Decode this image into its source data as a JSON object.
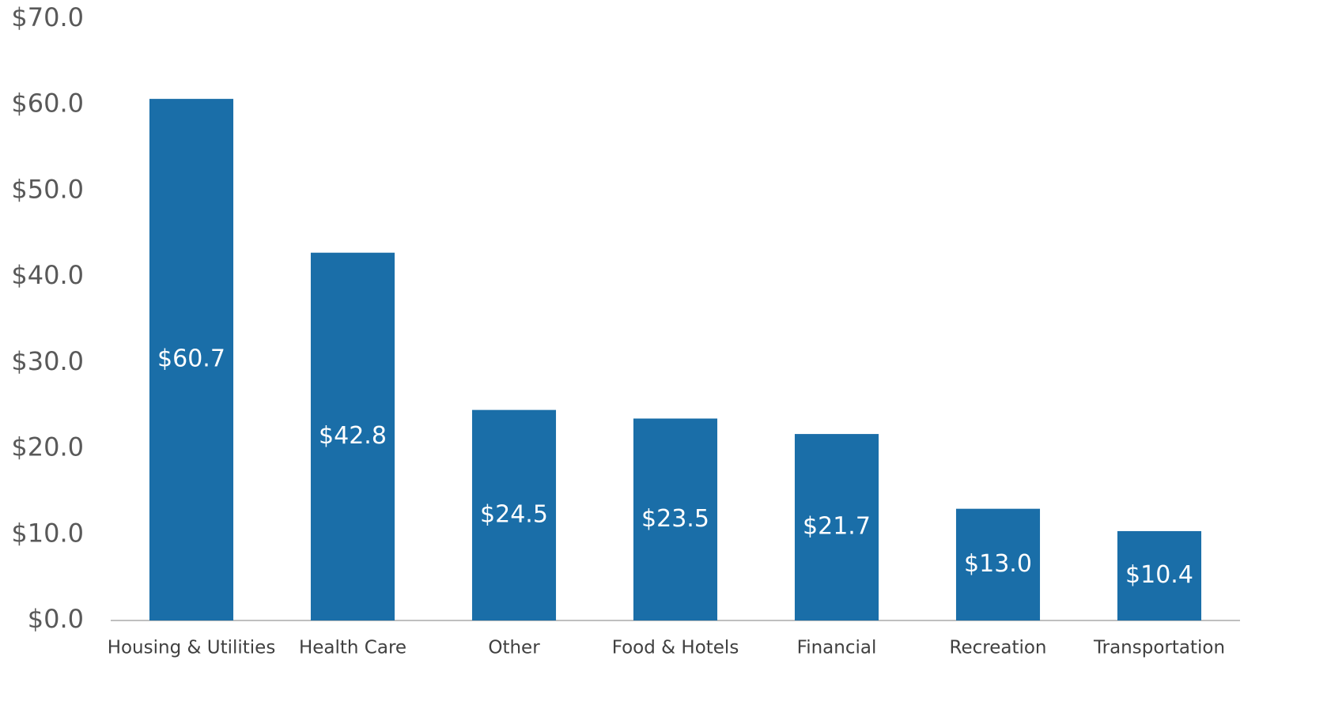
{
  "chart_data": {
    "type": "bar",
    "categories": [
      "Housing & Utilities",
      "Health Care",
      "Other",
      "Food & Hotels",
      "Financial",
      "Recreation",
      "Transportation"
    ],
    "values": [
      60.7,
      42.8,
      24.5,
      23.5,
      21.7,
      13.0,
      10.4
    ],
    "value_labels": [
      "$60.7",
      "$42.8",
      "$24.5",
      "$23.5",
      "$21.7",
      "$13.0",
      "$10.4"
    ],
    "color": "#1a6ea8",
    "ylim": [
      0,
      70
    ],
    "yticks": [
      {
        "value": 0,
        "label": "$0.0"
      },
      {
        "value": 10,
        "label": "$10.0"
      },
      {
        "value": 20,
        "label": "$20.0"
      },
      {
        "value": 30,
        "label": "$30.0"
      },
      {
        "value": 40,
        "label": "$40.0"
      },
      {
        "value": 50,
        "label": "$50.0"
      },
      {
        "value": 60,
        "label": "$60.0"
      },
      {
        "value": 70,
        "label": "$70.0"
      }
    ],
    "grid": false
  }
}
